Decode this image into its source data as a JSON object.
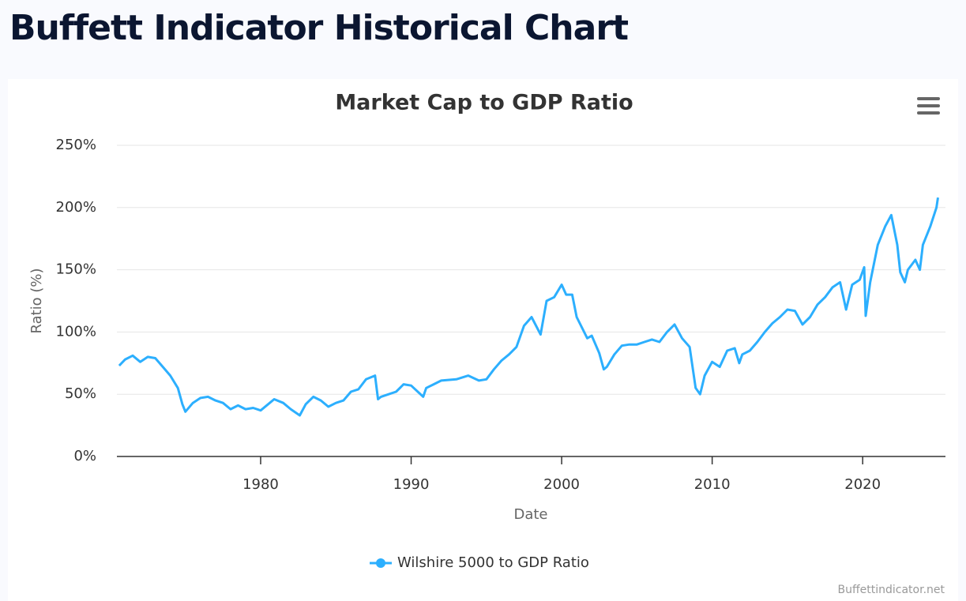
{
  "page": {
    "heading": "Buffett Indicator Historical Chart",
    "credits": "Buffettindicator.net"
  },
  "chart_data": {
    "type": "line",
    "title": "Market Cap to GDP Ratio",
    "x_label": "Date",
    "y_label": "Ratio (%)",
    "x": [
      1970.6,
      1971,
      1971.5,
      1972,
      1972.5,
      1973,
      1973.5,
      1974,
      1974.5,
      1974.8,
      1975,
      1975.5,
      1976,
      1976.5,
      1977,
      1977.5,
      1978,
      1978.5,
      1979,
      1979.5,
      1980,
      1980.5,
      1980.9,
      1981.5,
      1982,
      1982.6,
      1983,
      1983.5,
      1984,
      1984.5,
      1985,
      1985.5,
      1986,
      1986.5,
      1987,
      1987.6,
      1987.8,
      1988,
      1988.5,
      1989,
      1989.5,
      1990,
      1990.8,
      1991,
      1991.5,
      1992,
      1993,
      1993.8,
      1994.5,
      1995,
      1995.5,
      1996,
      1996.5,
      1997,
      1997.5,
      1998,
      1998.6,
      1999,
      1999.5,
      2000,
      2000.3,
      2000.7,
      2001,
      2001.7,
      2002,
      2002.5,
      2002.8,
      2003,
      2003.5,
      2004,
      2004.5,
      2005,
      2005.5,
      2006,
      2006.5,
      2007,
      2007.5,
      2008,
      2008.5,
      2008.9,
      2009.2,
      2009.5,
      2010,
      2010.5,
      2011,
      2011.5,
      2011.8,
      2012,
      2012.5,
      2013,
      2013.5,
      2014,
      2014.5,
      2015,
      2015.5,
      2016,
      2016.5,
      2017,
      2017.5,
      2018,
      2018.5,
      2018.9,
      2019.3,
      2019.8,
      2020.1,
      2020.2,
      2020.5,
      2021,
      2021.5,
      2021.9,
      2022.3,
      2022.5,
      2022.8,
      2023,
      2023.5,
      2023.8,
      2024,
      2024.5,
      2024.9,
      2025
    ],
    "series": [
      {
        "name": "Wilshire 5000 to GDP Ratio",
        "color": "#2caffe",
        "values": [
          73,
          78,
          81,
          76,
          80,
          79,
          72,
          65,
          55,
          42,
          36,
          43,
          47,
          48,
          45,
          43,
          38,
          41,
          38,
          39,
          37,
          42,
          46,
          43,
          38,
          33,
          42,
          48,
          45,
          40,
          43,
          45,
          52,
          54,
          62,
          65,
          46,
          48,
          50,
          52,
          58,
          57,
          48,
          55,
          58,
          61,
          62,
          65,
          61,
          62,
          70,
          77,
          82,
          88,
          105,
          112,
          98,
          125,
          128,
          138,
          130,
          130,
          112,
          95,
          97,
          83,
          70,
          72,
          82,
          89,
          90,
          90,
          92,
          94,
          92,
          100,
          106,
          95,
          88,
          55,
          50,
          65,
          76,
          72,
          85,
          87,
          75,
          82,
          85,
          92,
          100,
          107,
          112,
          118,
          117,
          106,
          112,
          122,
          128,
          136,
          140,
          118,
          138,
          142,
          152,
          113,
          140,
          170,
          185,
          194,
          170,
          148,
          140,
          150,
          158,
          150,
          170,
          185,
          200,
          208
        ]
      }
    ],
    "xlim": [
      1970.45,
      2025.5
    ],
    "xticks": [
      1980,
      1990,
      2000,
      2010,
      2020
    ],
    "ylim": [
      0,
      250
    ],
    "yticks": [
      {
        "value": 0,
        "label": "0%"
      },
      {
        "value": 50,
        "label": "50%"
      },
      {
        "value": 100,
        "label": "100%"
      },
      {
        "value": 150,
        "label": "150%"
      },
      {
        "value": 200,
        "label": "200%"
      },
      {
        "value": 250,
        "label": "250%"
      }
    ],
    "grid": true,
    "legend": "bottom"
  }
}
